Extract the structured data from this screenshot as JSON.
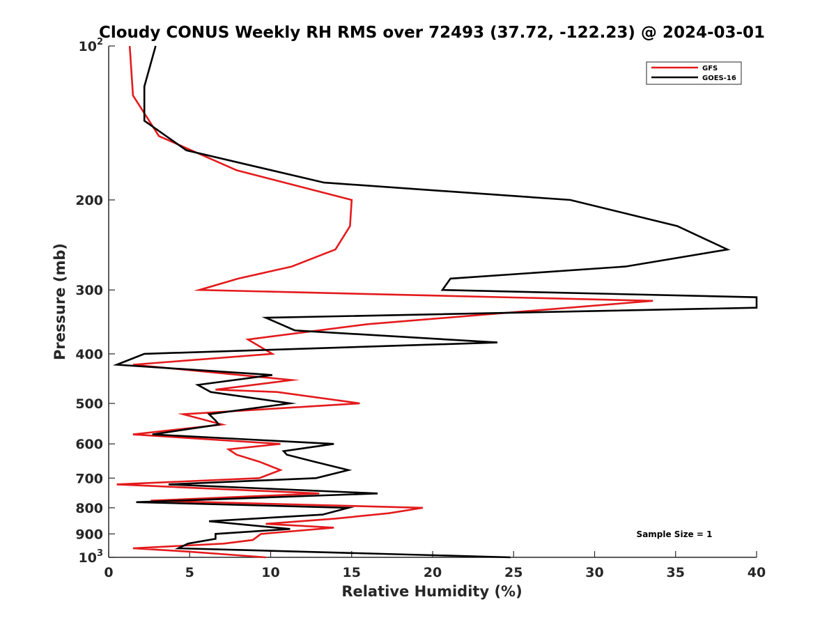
{
  "chart_data": {
    "type": "line",
    "title": "Cloudy CONUS Weekly RH RMS over 72493 (37.72, -122.23) @ 2024-03-01",
    "xlabel": "Relative Humidity (%)",
    "ylabel": "Pressure (mb)",
    "xlim": [
      0,
      40
    ],
    "ylim": [
      100,
      1000
    ],
    "y_scale": "log",
    "y_reversed": true,
    "grid": false,
    "legend_position": "top-right",
    "x_ticks": [
      "0",
      "5",
      "10",
      "15",
      "20",
      "25",
      "30",
      "35",
      "40"
    ],
    "y_ticks": [
      {
        "value": 100,
        "base": "10",
        "exp": "2"
      },
      {
        "value": 200,
        "label": "200"
      },
      {
        "value": 300,
        "label": "300"
      },
      {
        "value": 400,
        "label": "400"
      },
      {
        "value": 500,
        "label": "500"
      },
      {
        "value": 600,
        "label": "600"
      },
      {
        "value": 700,
        "label": "700"
      },
      {
        "value": 800,
        "label": "800"
      },
      {
        "value": 900,
        "label": "900"
      },
      {
        "value": 1000,
        "base": "10",
        "exp": "3"
      }
    ],
    "annotation": "Sample Size = 1",
    "series": [
      {
        "name": "GFS",
        "color": "#e41a1c",
        "points": [
          [
            1.3,
            100
          ],
          [
            1.5,
            125
          ],
          [
            3.1,
            150
          ],
          [
            7.9,
            175
          ],
          [
            15.0,
            200
          ],
          [
            14.9,
            225
          ],
          [
            14.0,
            250
          ],
          [
            11.3,
            270
          ],
          [
            8.0,
            285
          ],
          [
            5.6,
            300
          ],
          [
            33.6,
            315
          ],
          [
            16.0,
            350
          ],
          [
            8.6,
            375
          ],
          [
            10.1,
            400
          ],
          [
            1.5,
            420
          ],
          [
            11.3,
            450
          ],
          [
            6.6,
            470
          ],
          [
            10.4,
            475
          ],
          [
            15.5,
            500
          ],
          [
            4.6,
            525
          ],
          [
            7.0,
            550
          ],
          [
            1.5,
            575
          ],
          [
            10.6,
            600
          ],
          [
            7.4,
            615
          ],
          [
            7.9,
            630
          ],
          [
            9.3,
            650
          ],
          [
            10.6,
            675
          ],
          [
            9.3,
            700
          ],
          [
            0.5,
            720
          ],
          [
            13.0,
            750
          ],
          [
            2.6,
            775
          ],
          [
            19.4,
            800
          ],
          [
            17.3,
            820
          ],
          [
            14.0,
            840
          ],
          [
            9.7,
            860
          ],
          [
            13.9,
            875
          ],
          [
            9.4,
            900
          ],
          [
            8.9,
            925
          ],
          [
            7.1,
            940
          ],
          [
            1.5,
            960
          ],
          [
            5.0,
            975
          ],
          [
            9.7,
            1000
          ]
        ]
      },
      {
        "name": "GOES-16",
        "color": "#000000",
        "points": [
          [
            2.9,
            100
          ],
          [
            2.2,
            120
          ],
          [
            2.2,
            140
          ],
          [
            4.8,
            160
          ],
          [
            13.3,
            185
          ],
          [
            28.5,
            200
          ],
          [
            35.1,
            225
          ],
          [
            38.2,
            250
          ],
          [
            31.9,
            270
          ],
          [
            21.1,
            285
          ],
          [
            20.6,
            300
          ],
          [
            40.0,
            310
          ],
          [
            40.0,
            325
          ],
          [
            9.7,
            340
          ],
          [
            11.5,
            360
          ],
          [
            24.0,
            380
          ],
          [
            2.2,
            400
          ],
          [
            0.5,
            420
          ],
          [
            10.1,
            440
          ],
          [
            5.5,
            460
          ],
          [
            6.3,
            475
          ],
          [
            11.2,
            500
          ],
          [
            6.2,
            525
          ],
          [
            6.6,
            540
          ],
          [
            6.8,
            550
          ],
          [
            2.7,
            575
          ],
          [
            13.9,
            600
          ],
          [
            10.8,
            620
          ],
          [
            11.0,
            630
          ],
          [
            12.7,
            650
          ],
          [
            14.8,
            675
          ],
          [
            12.8,
            700
          ],
          [
            3.7,
            720
          ],
          [
            16.6,
            750
          ],
          [
            1.7,
            780
          ],
          [
            14.8,
            800
          ],
          [
            13.2,
            825
          ],
          [
            6.2,
            850
          ],
          [
            11.2,
            880
          ],
          [
            6.6,
            900
          ],
          [
            6.6,
            920
          ],
          [
            4.9,
            940
          ],
          [
            4.3,
            960
          ],
          [
            24.8,
            1000
          ]
        ]
      }
    ]
  }
}
